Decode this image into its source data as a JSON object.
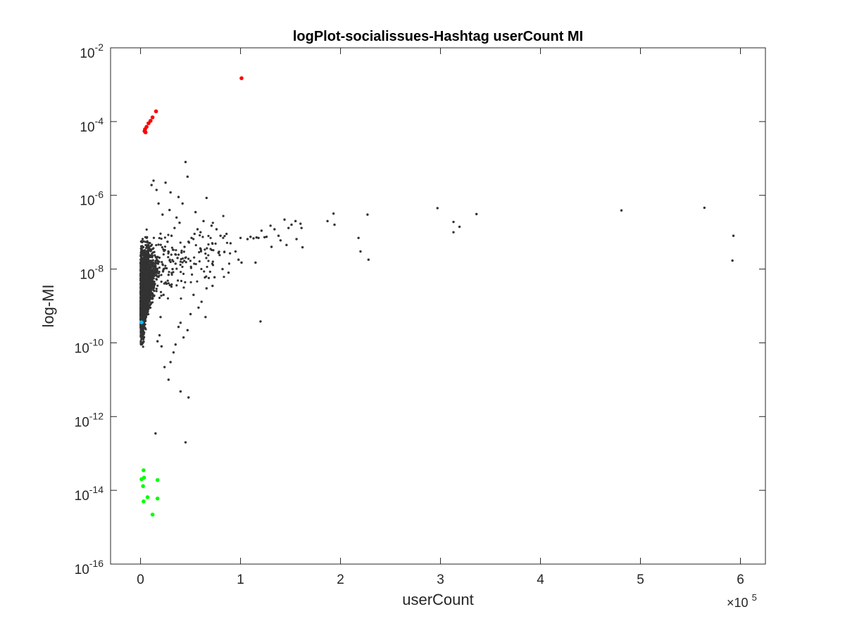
{
  "chart_data": {
    "type": "scatter",
    "title": "logPlot-socialissues-Hashtag userCount MI",
    "xlabel": "userCount",
    "ylabel": "log-MI",
    "x_multiplier_label": "×10",
    "x_multiplier_exponent": "5",
    "xlim": [
      -30000,
      625000
    ],
    "ylim": [
      1e-16,
      0.01
    ],
    "y_scale": "log",
    "grid": false,
    "x_ticks": [
      {
        "value": 0,
        "label": "0"
      },
      {
        "value": 100000,
        "label": "1"
      },
      {
        "value": 200000,
        "label": "2"
      },
      {
        "value": 300000,
        "label": "3"
      },
      {
        "value": 400000,
        "label": "4"
      },
      {
        "value": 500000,
        "label": "5"
      },
      {
        "value": 600000,
        "label": "6"
      }
    ],
    "y_ticks": [
      {
        "value": 1e-16,
        "base": "10",
        "exp": "-16"
      },
      {
        "value": 1e-14,
        "base": "10",
        "exp": "-14"
      },
      {
        "value": 1e-12,
        "base": "10",
        "exp": "-12"
      },
      {
        "value": 1e-10,
        "base": "10",
        "exp": "-10"
      },
      {
        "value": 1e-08,
        "base": "10",
        "exp": "-8"
      },
      {
        "value": 1e-06,
        "base": "10",
        "exp": "-6"
      },
      {
        "value": 0.0001,
        "base": "10",
        "exp": "-4"
      },
      {
        "value": 0.01,
        "base": "10",
        "exp": "-2"
      }
    ],
    "series": [
      {
        "color": "#333333",
        "cluster_note_shown_as": "dense band of dark points near userCount 0",
        "points": [
          [
            101000,
            1.5e-08
          ],
          [
            45000,
            8e-06
          ],
          [
            47000,
            3.2e-06
          ],
          [
            66000,
            8.5e-07
          ],
          [
            25000,
            2.2e-06
          ],
          [
            30000,
            1.2e-06
          ],
          [
            38000,
            9e-07
          ],
          [
            42000,
            6e-07
          ],
          [
            55000,
            3.5e-07
          ],
          [
            63000,
            2e-07
          ],
          [
            71000,
            1.5e-07
          ],
          [
            76000,
            1.2e-07
          ],
          [
            80000,
            8e-08
          ],
          [
            86000,
            9e-08
          ],
          [
            90000,
            5e-08
          ],
          [
            95000,
            3e-08
          ],
          [
            100000,
            7e-08
          ],
          [
            107000,
            6.5e-08
          ],
          [
            110000,
            7.5e-08
          ],
          [
            113000,
            6.8e-08
          ],
          [
            116000,
            7.2e-08
          ],
          [
            118000,
            7e-08
          ],
          [
            121000,
            1.1e-07
          ],
          [
            124000,
            7.3e-08
          ],
          [
            126000,
            7.5e-08
          ],
          [
            130000,
            1.5e-07
          ],
          [
            131000,
            4e-08
          ],
          [
            134000,
            1.2e-07
          ],
          [
            138000,
            8e-08
          ],
          [
            140000,
            6e-08
          ],
          [
            144000,
            2.2e-07
          ],
          [
            148000,
            1.3e-07
          ],
          [
            151000,
            1.6e-07
          ],
          [
            155000,
            2e-07
          ],
          [
            160000,
            1.7e-07
          ],
          [
            161000,
            1.3e-07
          ],
          [
            162000,
            3.9e-08
          ],
          [
            156000,
            6.5e-08
          ],
          [
            146000,
            4.5e-08
          ],
          [
            187000,
            2e-07
          ],
          [
            193000,
            3.2e-07
          ],
          [
            194000,
            1.6e-07
          ],
          [
            218000,
            7e-08
          ],
          [
            220000,
            3e-08
          ],
          [
            227000,
            3e-07
          ],
          [
            228000,
            1.8e-08
          ],
          [
            297000,
            4.5e-07
          ],
          [
            313000,
            1.9e-07
          ],
          [
            313000,
            1e-07
          ],
          [
            319000,
            1.4e-07
          ],
          [
            336000,
            3.1e-07
          ],
          [
            481000,
            3.9e-07
          ],
          [
            564000,
            4.6e-07
          ],
          [
            593000,
            8e-08
          ],
          [
            592000,
            1.7e-08
          ],
          [
            120000,
            3.8e-10
          ],
          [
            115000,
            1.5e-08
          ],
          [
            98000,
            1.8e-08
          ],
          [
            88000,
            8e-09
          ],
          [
            82000,
            1e-08
          ],
          [
            78000,
            2.8e-08
          ],
          [
            74000,
            6e-09
          ],
          [
            72000,
            3.5e-09
          ],
          [
            66000,
            3e-09
          ],
          [
            61000,
            1.3e-09
          ],
          [
            58000,
            9e-10
          ],
          [
            65000,
            5e-10
          ],
          [
            53000,
            2e-09
          ],
          [
            50000,
            6e-10
          ],
          [
            47000,
            2.2e-10
          ],
          [
            43000,
            1.4e-10
          ],
          [
            40000,
            3.5e-10
          ],
          [
            38000,
            2.7e-10
          ],
          [
            35000,
            9e-11
          ],
          [
            33000,
            5.5e-11
          ],
          [
            30000,
            3e-11
          ],
          [
            28000,
            1e-11
          ],
          [
            24000,
            2.2e-11
          ],
          [
            21000,
            8e-11
          ],
          [
            19000,
            1.6e-10
          ],
          [
            40000,
            4.8e-12
          ],
          [
            48000,
            3.3e-12
          ],
          [
            45000,
            2e-13
          ],
          [
            15000,
            3.5e-13
          ],
          [
            17000,
            1.1e-10
          ],
          [
            20000,
            5e-10
          ],
          [
            23000,
            2e-09
          ],
          [
            26000,
            4e-09
          ],
          [
            28000,
            7e-09
          ],
          [
            32000,
            1e-08
          ],
          [
            35000,
            1.4e-08
          ],
          [
            37000,
            2e-08
          ],
          [
            41000,
            2.8e-08
          ],
          [
            44000,
            4e-08
          ],
          [
            48000,
            5.5e-08
          ],
          [
            51000,
            7e-08
          ],
          [
            54000,
            9e-08
          ],
          [
            57000,
            1.2e-07
          ],
          [
            60000,
            1e-07
          ],
          [
            29000,
            4e-07
          ],
          [
            27000,
            5.5e-08
          ],
          [
            31000,
            8e-08
          ],
          [
            34000,
            1.3e-07
          ],
          [
            36000,
            2.5e-07
          ],
          [
            39000,
            1.8e-07
          ],
          [
            22000,
            3e-07
          ],
          [
            18000,
            6e-07
          ],
          [
            16000,
            1.4e-06
          ],
          [
            13000,
            2.5e-06
          ],
          [
            11000,
            1.9e-06
          ]
        ]
      },
      {
        "color": "#ff0000",
        "points": [
          [
            101000,
            0.0015
          ],
          [
            15500,
            0.00019
          ],
          [
            12000,
            0.00013
          ],
          [
            10000,
            0.000105
          ],
          [
            8000,
            9e-05
          ],
          [
            6000,
            7.2e-05
          ],
          [
            4500,
            6.2e-05
          ],
          [
            4000,
            5.5e-05
          ],
          [
            5000,
            5.1e-05
          ]
        ]
      },
      {
        "color": "#00ff00",
        "points": [
          [
            3000,
            3.5e-14
          ],
          [
            1000,
            2e-14
          ],
          [
            3500,
            2.2e-14
          ],
          [
            2500,
            1.3e-14
          ],
          [
            17000,
            1.9e-14
          ],
          [
            7000,
            6.5e-15
          ],
          [
            17000,
            6e-15
          ],
          [
            3000,
            5e-15
          ],
          [
            12000,
            2.2e-15
          ]
        ]
      },
      {
        "color": "#00bfff",
        "points": [
          [
            1000,
            3.6e-10
          ]
        ]
      }
    ]
  }
}
